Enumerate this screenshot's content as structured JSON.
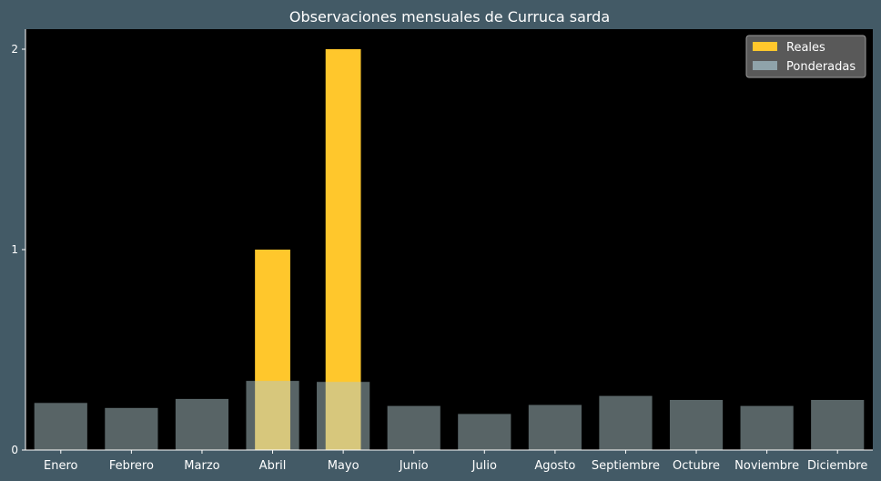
{
  "chart_data": {
    "type": "bar",
    "title": "Observaciones mensuales de Curruca sarda",
    "xlabel": "",
    "ylabel": "",
    "categories": [
      "Enero",
      "Febrero",
      "Marzo",
      "Abril",
      "Mayo",
      "Junio",
      "Julio",
      "Agosto",
      "Septiembre",
      "Octubre",
      "Noviembre",
      "Diciembre"
    ],
    "series": [
      {
        "name": "Reales",
        "color": "#ffc72c",
        "values": [
          0,
          0,
          0,
          1,
          2,
          0,
          0,
          0,
          0,
          0,
          0,
          0
        ]
      },
      {
        "name": "Ponderadas",
        "color": "#b0c8cc",
        "opacity": 0.5,
        "values": [
          0.235,
          0.21,
          0.255,
          0.345,
          0.34,
          0.22,
          0.18,
          0.225,
          0.27,
          0.25,
          0.22,
          0.25
        ]
      }
    ],
    "ylim": [
      0,
      2.1
    ],
    "yticks": [
      0,
      1,
      2
    ],
    "grid": false,
    "legend_position": "top-right",
    "background": "#000000",
    "figure_background": "#435a66",
    "text_color": "#ffffff"
  }
}
